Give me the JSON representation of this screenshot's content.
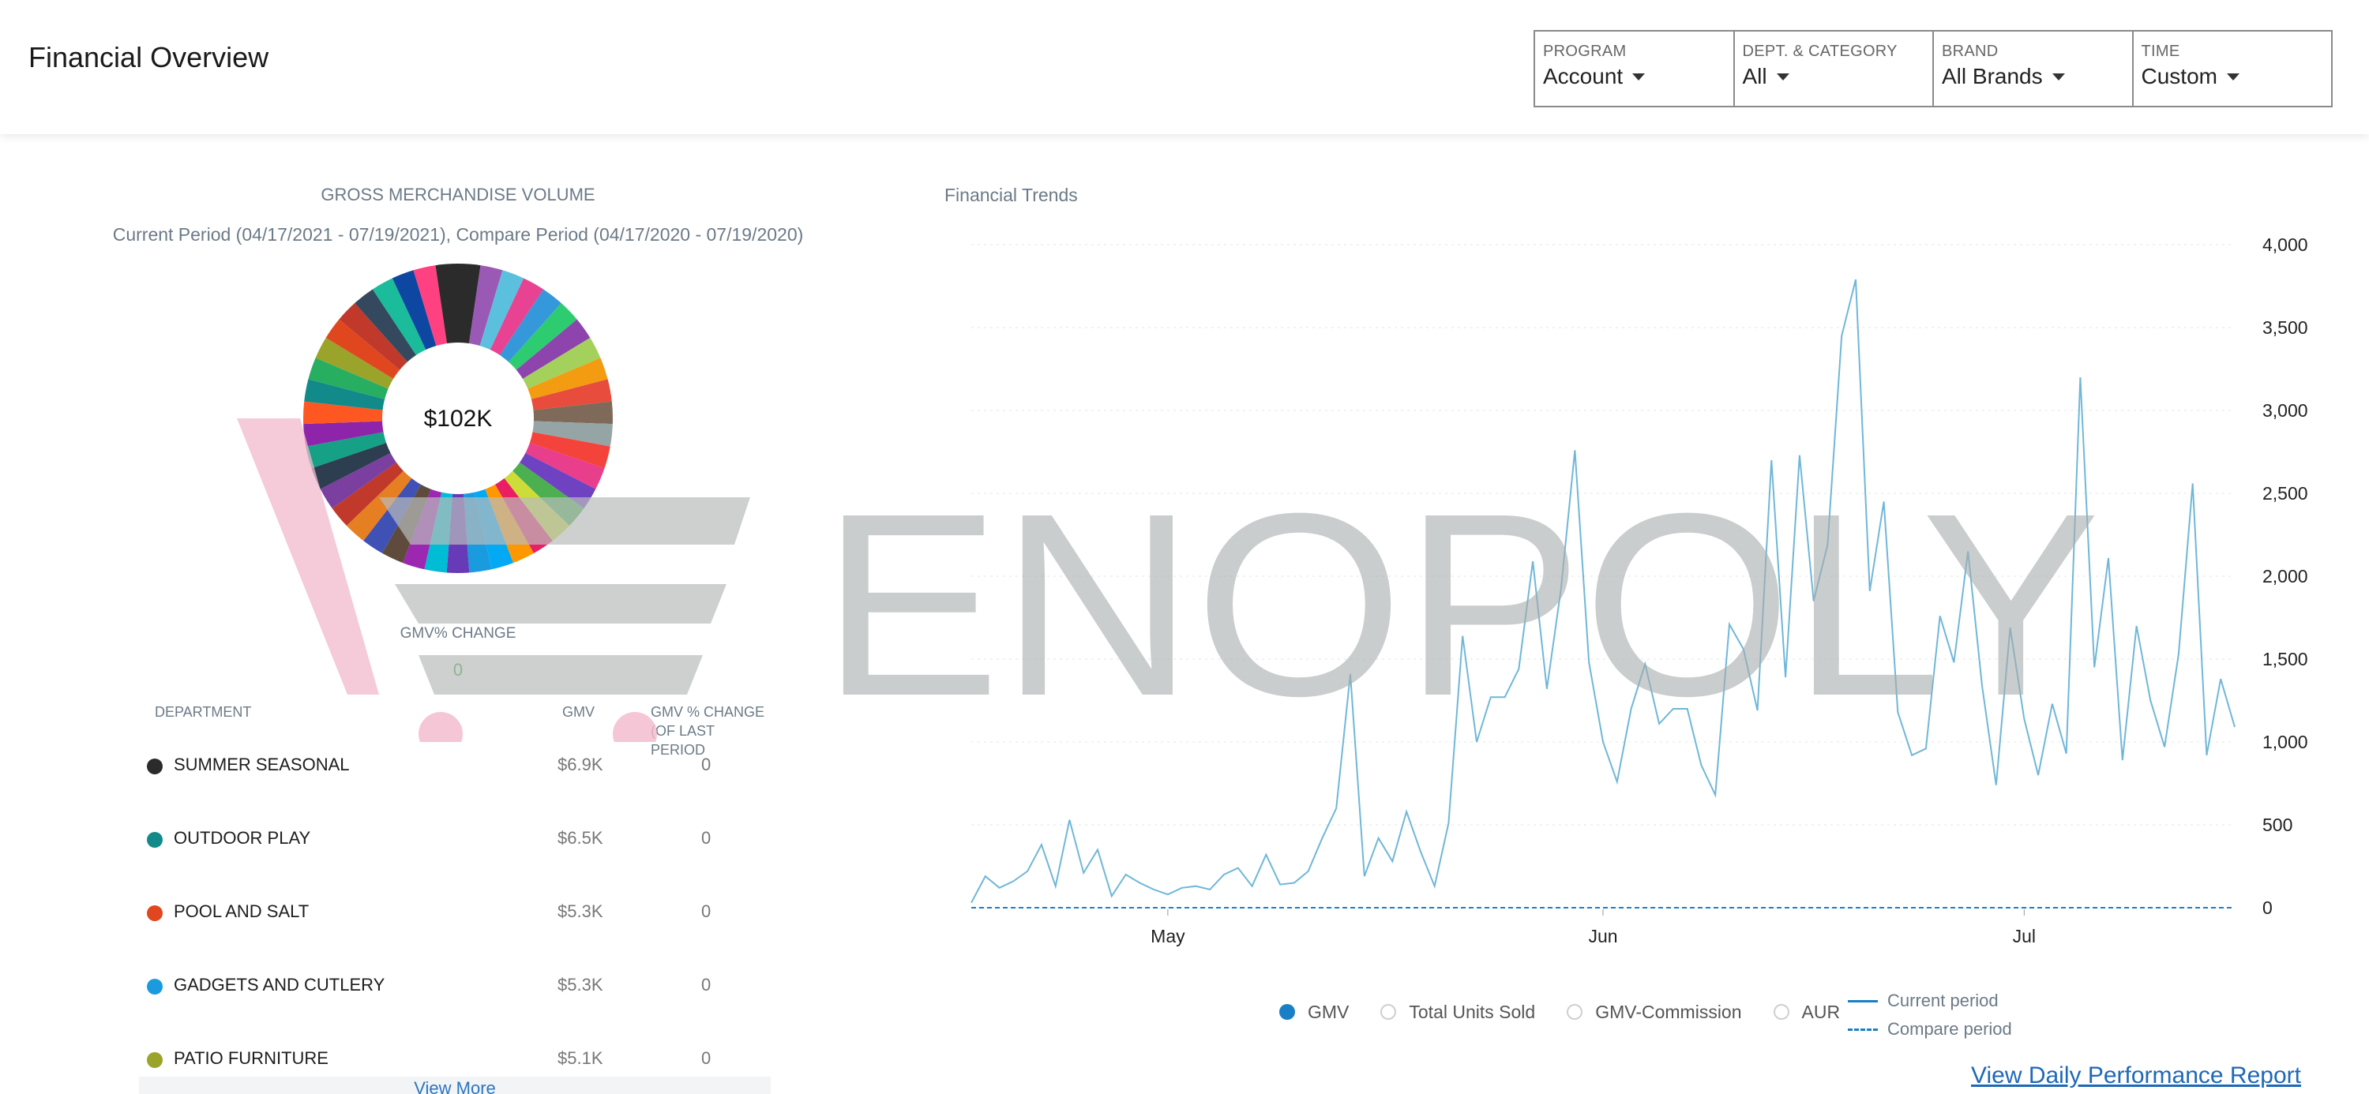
{
  "header": {
    "title": "Financial Overview",
    "filters": [
      {
        "label": "PROGRAM",
        "value": "Account"
      },
      {
        "label": "DEPT. & CATEGORY",
        "value": "All"
      },
      {
        "label": "BRAND",
        "value": "All Brands"
      },
      {
        "label": "TIME",
        "value": "Custom"
      }
    ]
  },
  "gmv_panel": {
    "title": "GROSS MERCHANDISE VOLUME",
    "subtitle": "Current Period (04/17/2021 - 07/19/2021), Compare Period (04/17/2020 - 07/19/2020)",
    "total": "$102K",
    "change_label": "GMV% CHANGE",
    "change_value": "0",
    "table": {
      "headers": {
        "department": "DEPARTMENT",
        "gmv": "GMV",
        "change_line1": "GMV % CHANGE",
        "change_line2": "(OF LAST PERIOD"
      },
      "rows": [
        {
          "name": "SUMMER SEASONAL",
          "gmv": "$6.9K",
          "change": "0",
          "color": "#2b2b2b"
        },
        {
          "name": "OUTDOOR PLAY",
          "gmv": "$6.5K",
          "change": "0",
          "color": "#138a8a"
        },
        {
          "name": "POOL AND SALT",
          "gmv": "$5.3K",
          "change": "0",
          "color": "#e0471f"
        },
        {
          "name": "GADGETS AND CUTLERY",
          "gmv": "$5.3K",
          "change": "0",
          "color": "#1a9be0"
        },
        {
          "name": "PATIO FURNITURE",
          "gmv": "$5.1K",
          "change": "0",
          "color": "#9aa32a"
        }
      ],
      "view_more": "View More"
    }
  },
  "donut_colors": [
    "#2b2b2b",
    "#9b59b6",
    "#5bc0de",
    "#e84393",
    "#3498db",
    "#2ecc71",
    "#8e44ad",
    "#a3d15c",
    "#f39c12",
    "#e74c3c",
    "#7f6a5a",
    "#95a5a6",
    "#f4433b",
    "#e83e8c",
    "#6f42c1",
    "#4caf50",
    "#cddc39",
    "#e91e63",
    "#ff9800",
    "#03a9f4",
    "#1a9be0",
    "#673ab7",
    "#00bcd4",
    "#9c27b0",
    "#5e4b3c",
    "#3f51b5",
    "#e67e22",
    "#c0392b",
    "#7b3fa0",
    "#2c3e50",
    "#16a085",
    "#8e24aa",
    "#ff5722",
    "#138a8a",
    "#27ae60",
    "#9aa32a",
    "#e0471f",
    "#c0392b",
    "#34495e",
    "#1abc9c",
    "#0d47a1",
    "#ff4081",
    "#2b2b2b"
  ],
  "trends": {
    "title": "Financial Trends",
    "options": [
      {
        "label": "GMV",
        "selected": true
      },
      {
        "label": "Total Units Sold",
        "selected": false
      },
      {
        "label": "GMV-Commission",
        "selected": false
      },
      {
        "label": "AUR",
        "selected": false
      }
    ],
    "current_period": "Current period",
    "compare_period": "Compare period",
    "report_link": "View Daily Performance Report",
    "line_color": "#6fb7d9"
  },
  "chart_data": {
    "type": "line",
    "x_ticks": [
      "May",
      "Jun",
      "Jul"
    ],
    "x_tick_days": [
      14,
      45,
      75
    ],
    "ylim": [
      0,
      4000
    ],
    "y_ticks": [
      "0",
      "500",
      "1,000",
      "1,500",
      "2,000",
      "2,500",
      "3,000",
      "3,500",
      "4,000"
    ],
    "series": [
      {
        "name": "Current period",
        "values": [
          30,
          190,
          120,
          160,
          220,
          380,
          130,
          530,
          210,
          350,
          70,
          200,
          150,
          110,
          80,
          120,
          130,
          110,
          200,
          240,
          130,
          320,
          140,
          150,
          220,
          420,
          600,
          1410,
          190,
          420,
          280,
          580,
          340,
          130,
          510,
          1640,
          1000,
          1270,
          1270,
          1440,
          2090,
          1320,
          1920,
          2760,
          1480,
          1000,
          760,
          1200,
          1470,
          1110,
          1200,
          1200,
          860,
          680,
          1710,
          1560,
          1190,
          2700,
          1390,
          2730,
          1850,
          2190,
          3450,
          3790,
          1910,
          2450,
          1180,
          920,
          960,
          1760,
          1480,
          2150,
          1340,
          740,
          1690,
          1140,
          800,
          1230,
          930,
          3200,
          1450,
          2110,
          890,
          1700,
          1250,
          970,
          1530,
          2560,
          920,
          1380,
          1090
        ]
      },
      {
        "name": "Compare period",
        "values": [
          0,
          0,
          0,
          0,
          0,
          0,
          0,
          0,
          0,
          0,
          0,
          0,
          0,
          0,
          0,
          0,
          0,
          0,
          0,
          0,
          0,
          0,
          0,
          0,
          0,
          0,
          0,
          0,
          0,
          0,
          0,
          0,
          0,
          0,
          0,
          0,
          0,
          0,
          0,
          0,
          0,
          0,
          0,
          0,
          0,
          0,
          0,
          0,
          0,
          0,
          0,
          0,
          0,
          0,
          0,
          0,
          0,
          0,
          0,
          0,
          0,
          0,
          0,
          0,
          0,
          0,
          0,
          0,
          0,
          0,
          0,
          0,
          0,
          0,
          0,
          0,
          0,
          0,
          0,
          0,
          0,
          0,
          0,
          0,
          0,
          0,
          0,
          0,
          0,
          0,
          0
        ]
      }
    ]
  },
  "watermark": {
    "text": "ENOPOLY"
  }
}
